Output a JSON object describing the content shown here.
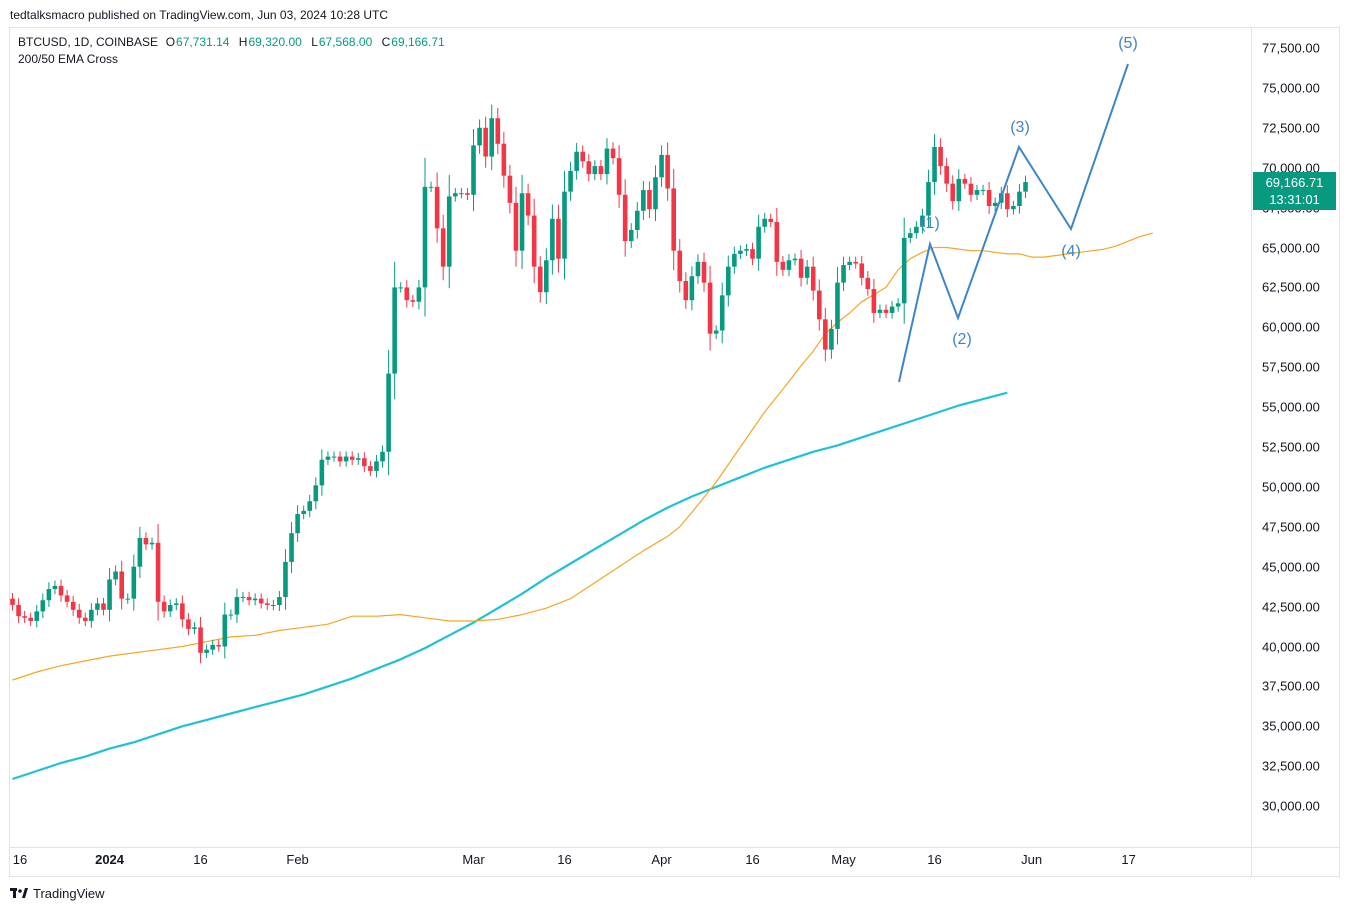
{
  "header": {
    "published": "tedtalksmacro published on TradingView.com, Jun 03, 2024 10:28 UTC"
  },
  "legend": {
    "symbol": "BTCUSD, 1D, COINBASE",
    "o_key": "O",
    "o_val": "67,731.14",
    "h_key": "H",
    "h_val": "69,320.00",
    "l_key": "L",
    "l_val": "67,568.00",
    "c_key": "C",
    "c_val": "69,166.71",
    "indicator": "200/50 EMA Cross"
  },
  "price_tag": {
    "price": "69,166.71",
    "countdown": "13:31:01"
  },
  "brand": {
    "name": "TradingView"
  },
  "colors": {
    "up": "#089981",
    "down": "#f23645",
    "ema50": "#f5a623",
    "ema200": "#1fc1d6",
    "wave": "#3d85c6"
  },
  "chart_data": {
    "type": "candlestick",
    "y_axis_ticks": [
      "77,500.00",
      "75,000.00",
      "72,500.00",
      "70,000.00",
      "67,500.00",
      "65,000.00",
      "62,500.00",
      "60,000.00",
      "57,500.00",
      "55,000.00",
      "52,500.00",
      "50,000.00",
      "47,500.00",
      "45,000.00",
      "42,500.00",
      "40,000.00",
      "37,500.00",
      "35,000.00",
      "32,500.00",
      "30,000.00"
    ],
    "y_axis_values": [
      77500,
      75000,
      72500,
      70000,
      67500,
      65000,
      62500,
      60000,
      57500,
      55000,
      52500,
      50000,
      47500,
      45000,
      42500,
      40000,
      37500,
      35000,
      32500,
      30000
    ],
    "x_axis_ticks": [
      {
        "label": "16",
        "day": 0
      },
      {
        "label": "2024",
        "day": 16
      },
      {
        "label": "16",
        "day": 31
      },
      {
        "label": "Feb",
        "day": 47
      },
      {
        "label": "Mar",
        "day": 76
      },
      {
        "label": "16",
        "day": 91
      },
      {
        "label": "Apr",
        "day": 107
      },
      {
        "label": "16",
        "day": 122
      },
      {
        "label": "May",
        "day": 137
      },
      {
        "label": "16",
        "day": 152
      },
      {
        "label": "Jun",
        "day": 168
      },
      {
        "label": "17",
        "day": 184
      }
    ],
    "x_axis_start": "2023-12-16",
    "candles_close": [
      42600,
      41900,
      41800,
      41600,
      42200,
      42900,
      43600,
      43800,
      43200,
      42800,
      42300,
      41800,
      41600,
      42300,
      42700,
      42300,
      44200,
      44700,
      43000,
      43000,
      45000,
      46800,
      46400,
      46500,
      42800,
      42200,
      42600,
      42700,
      41700,
      41100,
      41200,
      39600,
      39800,
      40100,
      40000,
      42000,
      42000,
      43100,
      43100,
      42900,
      43000,
      42700,
      42600,
      42600,
      43100,
      45300,
      47100,
      48300,
      48500,
      49100,
      50100,
      51700,
      51900,
      51900,
      51600,
      51900,
      51700,
      51800,
      51300,
      51000,
      51600,
      52200,
      57100,
      62500,
      62500,
      61700,
      61600,
      62500,
      68800,
      68800,
      66200,
      63800,
      68200,
      68400,
      68400,
      68300,
      71400,
      72500,
      70700,
      73100,
      71500,
      69500,
      67800,
      64800,
      68400,
      67000,
      63800,
      62200,
      64200,
      66800,
      64300,
      68500,
      69800,
      71000,
      70400,
      69600,
      70100,
      69600,
      71200,
      70600,
      68300,
      65400,
      66100,
      67300,
      68600,
      67400,
      69400,
      70800,
      68700,
      64800,
      62900,
      61700,
      63200,
      64100,
      62800,
      59600,
      59800,
      62000,
      63800,
      64600,
      64800,
      64900,
      64300,
      66300,
      66800,
      66600,
      64100,
      63600,
      64200,
      64300,
      63100,
      63800,
      62300,
      60500,
      58600,
      59900,
      62800,
      63900,
      64100,
      64000,
      63100,
      62400,
      60900,
      61100,
      60900,
      61300,
      61500,
      65600,
      65900,
      66300,
      67000,
      69100,
      71300,
      70100,
      69000,
      67900,
      69300,
      69000,
      68300,
      68600,
      68600,
      67600,
      67800,
      68400,
      67400,
      67600,
      68500,
      69100
    ],
    "series": [
      {
        "name": "EMA 50",
        "color": "#f5a623",
        "values": [
          37900,
          38400,
          38800,
          39100,
          39400,
          39600,
          39800,
          40000,
          40300,
          40600,
          40700,
          41000,
          41200,
          41400,
          41900,
          41900,
          42000,
          41800,
          41600,
          41600,
          41700,
          42000,
          42400,
          43000,
          44000,
          45000,
          46000,
          46900,
          47500,
          48400,
          50300,
          52500,
          54700,
          56600,
          57600,
          58500,
          59600,
          60300,
          60900,
          61600,
          62500,
          63600,
          64300,
          64700,
          65000,
          65000,
          64900,
          64800,
          64800,
          64700,
          64600,
          64600,
          64400,
          64400,
          64500,
          64600,
          64700,
          64800,
          64900,
          65100,
          65400,
          65700,
          65900
        ],
        "days": [
          0,
          4,
          8,
          12,
          16,
          20,
          24,
          28,
          32,
          36,
          40,
          44,
          48,
          52,
          56,
          60,
          64,
          68,
          72,
          76,
          80,
          84,
          88,
          92,
          96,
          100,
          104,
          108,
          110,
          112,
          116,
          120,
          124,
          128,
          130,
          132,
          134,
          136,
          138,
          140,
          144,
          146,
          148,
          150,
          152,
          154,
          156,
          158,
          160,
          162,
          164,
          166,
          168,
          170,
          172,
          174,
          176,
          178,
          180,
          182,
          184,
          186,
          188
        ]
      },
      {
        "name": "EMA 200",
        "color": "#1fc1d6",
        "values": [
          31700,
          32200,
          32700,
          33100,
          33600,
          34000,
          34500,
          35000,
          35400,
          35800,
          36200,
          36600,
          37000,
          37500,
          38000,
          38600,
          39200,
          39900,
          40700,
          41500,
          42400,
          43300,
          44300,
          45200,
          46100,
          47000,
          47900,
          48700,
          49400,
          50000,
          50600,
          51200,
          51700,
          52200,
          52600,
          53100,
          53600,
          54100,
          54600,
          55100,
          55500,
          55900
        ],
        "days": [
          0,
          4,
          8,
          12,
          16,
          20,
          24,
          28,
          32,
          36,
          40,
          44,
          48,
          52,
          56,
          60,
          64,
          68,
          72,
          76,
          80,
          84,
          88,
          92,
          96,
          100,
          104,
          108,
          112,
          116,
          120,
          124,
          128,
          132,
          136,
          140,
          144,
          148,
          152,
          156,
          160,
          164
        ]
      }
    ],
    "annotations": {
      "elliott_wave": [
        {
          "label": "(1)",
          "price": 65300
        },
        {
          "label": "(2)",
          "price": 60300
        },
        {
          "label": "(3)",
          "price": 71300
        },
        {
          "label": "(4)",
          "price": 66200
        },
        {
          "label": "(5)",
          "price": 76500
        }
      ]
    },
    "ylim": [
      27000,
      80000
    ]
  }
}
